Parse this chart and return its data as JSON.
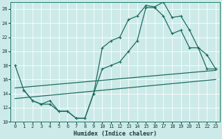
{
  "xlabel": "Humidex (Indice chaleur)",
  "bg_color": "#cceae8",
  "line_color": "#1a6b5e",
  "grid_color": "#b0d8d4",
  "xlim": [
    -0.5,
    23.5
  ],
  "ylim": [
    10,
    27
  ],
  "xticks": [
    0,
    1,
    2,
    3,
    4,
    5,
    6,
    7,
    8,
    9,
    10,
    11,
    12,
    13,
    14,
    15,
    16,
    17,
    18,
    19,
    20,
    21,
    22,
    23
  ],
  "yticks": [
    10,
    12,
    14,
    16,
    18,
    20,
    22,
    24,
    26
  ],
  "line1_x": [
    0,
    1,
    2,
    3,
    4,
    5,
    6,
    7,
    8,
    9,
    10,
    11,
    12,
    13,
    14,
    15,
    16,
    17,
    18,
    19,
    20,
    21,
    22,
    23
  ],
  "line1_y": [
    18,
    14.5,
    13,
    12.5,
    13,
    11.5,
    11.5,
    10.5,
    10.5,
    14,
    20.5,
    21.5,
    22,
    24.5,
    25,
    26.5,
    26.3,
    27,
    24.8,
    25.0,
    23,
    20.5,
    19.5,
    17.5
  ],
  "line2_x": [
    1,
    2,
    3,
    4,
    5,
    6,
    7,
    8,
    9,
    10,
    11,
    12,
    13,
    14,
    15,
    16,
    17,
    18,
    19,
    20,
    21,
    22,
    23
  ],
  "line2_y": [
    14.5,
    13,
    12.5,
    12.5,
    11.5,
    11.5,
    10.5,
    10.5,
    14,
    17.5,
    18,
    18.5,
    20,
    21.5,
    26.2,
    26.2,
    25.0,
    22.5,
    23.0,
    20.5,
    20.5,
    17.5,
    17.5
  ],
  "trend1_x": [
    0,
    23
  ],
  "trend1_y": [
    14.8,
    17.3
  ],
  "trend2_x": [
    0,
    23
  ],
  "trend2_y": [
    13.3,
    16.0
  ]
}
